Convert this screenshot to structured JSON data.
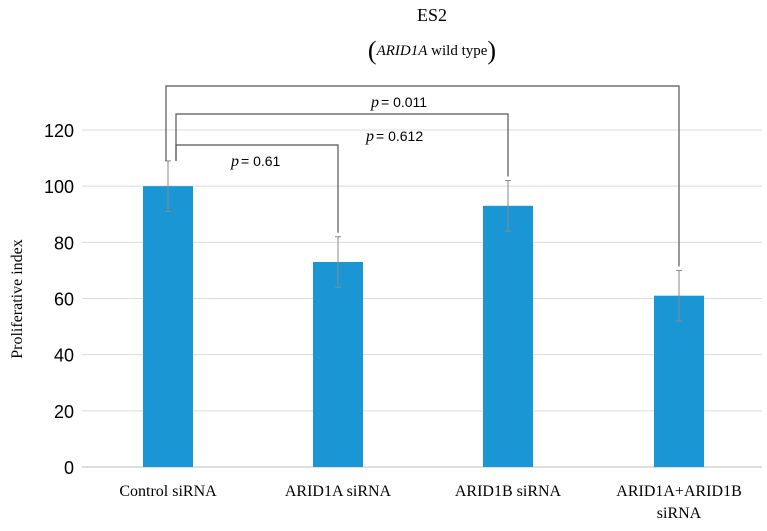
{
  "chart_data": {
    "type": "bar",
    "title": "ES2",
    "subtitle": {
      "gene": "ARID1A",
      "rest": "wild type"
    },
    "ylabel": "Proliferative index",
    "ylim": [
      0,
      120
    ],
    "yticks": [
      0,
      20,
      40,
      60,
      80,
      100,
      120
    ],
    "categories": [
      "Control siRNA",
      "ARID1A siRNA",
      "ARID1B siRNA",
      "ARID1A+ARID1B siRNA"
    ],
    "category_lines": [
      [
        "Control siRNA"
      ],
      [
        "ARID1A siRNA"
      ],
      [
        "ARID1B siRNA"
      ],
      [
        "ARID1A+ARID1B",
        "siRNA"
      ]
    ],
    "values": [
      100,
      73,
      93,
      61
    ],
    "errors": [
      9,
      9,
      9,
      9
    ],
    "bar_color": "#1a96d4",
    "grid": true,
    "comparisons": [
      {
        "from": 0,
        "to": 1,
        "p_symbol": "p",
        "p_text": "=  0.61",
        "level": 1
      },
      {
        "from": 0,
        "to": 2,
        "p_symbol": "p",
        "p_text": "= 0.612",
        "level": 2
      },
      {
        "from": 0,
        "to": 3,
        "p_symbol": "p",
        "p_text": "= 0.011",
        "level": 3
      }
    ]
  }
}
